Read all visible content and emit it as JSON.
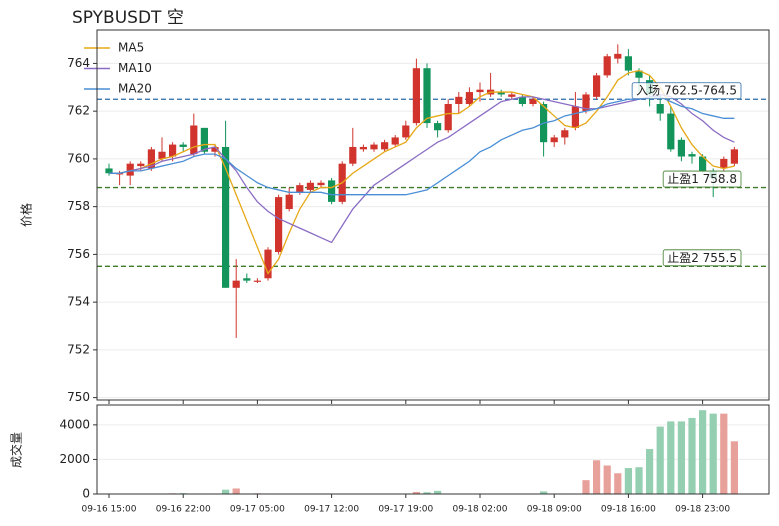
{
  "chart_data": [
    {
      "type": "candlestick",
      "title": "SPYBUSDT  空",
      "ylabel": "价格",
      "open": [
        759.6,
        759.4,
        759.3,
        759.7,
        759.6,
        760.0,
        760.1,
        760.6,
        760.2,
        761.3,
        760.3,
        760.5,
        754.6,
        755.0,
        754.9,
        755.0,
        756.1,
        757.9,
        758.6,
        758.7,
        758.9,
        759.1,
        758.2,
        759.8,
        760.4,
        760.4,
        760.4,
        760.6,
        760.9,
        761.5,
        763.8,
        761.5,
        761.2,
        762.3,
        762.3,
        762.8,
        762.7,
        762.8,
        762.6,
        762.6,
        762.3,
        762.3,
        760.7,
        760.9,
        761.3,
        762.0,
        762.6,
        763.5,
        764.2,
        764.3,
        763.7,
        763.3,
        762.3,
        761.9,
        760.8,
        760.2,
        760.1,
        759.5,
        759.6,
        759.8
      ],
      "high": [
        759.8,
        759.5,
        759.9,
        759.9,
        760.5,
        760.9,
        760.7,
        760.7,
        761.9,
        761.3,
        760.6,
        761.6,
        755.8,
        755.2,
        755.0,
        756.3,
        758.5,
        758.8,
        759.0,
        759.1,
        759.1,
        759.2,
        759.9,
        761.3,
        760.6,
        760.7,
        760.8,
        761.0,
        761.6,
        764.2,
        764.0,
        761.6,
        762.5,
        762.8,
        763.0,
        763.2,
        763.6,
        762.9,
        762.8,
        762.7,
        762.6,
        762.4,
        761.0,
        761.3,
        762.8,
        762.8,
        763.6,
        764.4,
        764.8,
        764.6,
        763.8,
        763.5,
        762.7,
        762.2,
        760.9,
        760.3,
        760.2,
        759.6,
        760.1,
        760.5
      ],
      "low": [
        759.3,
        758.9,
        758.9,
        759.5,
        759.5,
        759.9,
        759.9,
        760.3,
        760.1,
        760.2,
        760.1,
        754.6,
        752.5,
        754.8,
        754.8,
        754.9,
        756.0,
        757.8,
        758.5,
        758.6,
        758.8,
        758.1,
        758.1,
        759.7,
        760.3,
        760.3,
        760.3,
        760.5,
        760.8,
        761.4,
        761.3,
        760.9,
        761.1,
        761.9,
        762.2,
        762.4,
        762.6,
        762.6,
        762.5,
        762.2,
        762.2,
        760.1,
        760.5,
        760.6,
        761.2,
        761.9,
        762.5,
        763.4,
        764.0,
        763.5,
        762.7,
        762.2,
        761.6,
        760.3,
        759.9,
        759.8,
        759.4,
        758.4,
        759.5,
        759.7
      ],
      "close": [
        759.4,
        759.4,
        759.8,
        759.8,
        760.4,
        760.3,
        760.6,
        760.5,
        761.4,
        760.3,
        760.5,
        754.6,
        754.9,
        754.9,
        754.9,
        756.2,
        758.4,
        758.5,
        758.9,
        759.0,
        759.0,
        758.2,
        759.8,
        760.5,
        760.5,
        760.6,
        760.7,
        760.9,
        761.4,
        763.8,
        761.5,
        761.2,
        762.3,
        762.6,
        762.8,
        762.9,
        762.9,
        762.7,
        762.7,
        762.3,
        762.5,
        760.7,
        760.9,
        761.2,
        762.2,
        762.7,
        763.5,
        764.3,
        764.4,
        763.7,
        763.4,
        762.7,
        761.9,
        760.4,
        760.1,
        760.1,
        759.5,
        759.2,
        760.0,
        760.4
      ],
      "up_color": "#d0342c",
      "down_color": "#12945a",
      "series": [
        {
          "name": "MA5",
          "color": "#e6a817",
          "values": [
            759.4,
            759.4,
            759.5,
            759.6,
            759.8,
            760.0,
            760.1,
            760.3,
            760.5,
            760.6,
            760.6,
            759.6,
            758.5,
            757.4,
            756.3,
            755.2,
            755.8,
            756.9,
            757.9,
            758.6,
            758.8,
            758.8,
            759.0,
            759.4,
            759.7,
            760.0,
            760.3,
            760.5,
            760.7,
            761.3,
            761.7,
            761.8,
            761.9,
            761.9,
            762.2,
            762.6,
            762.8,
            762.8,
            762.8,
            762.7,
            762.6,
            762.2,
            761.8,
            761.4,
            761.3,
            761.5,
            762.0,
            762.6,
            763.3,
            763.6,
            763.7,
            763.5,
            763.0,
            762.2,
            761.3,
            760.6,
            760.1,
            759.7,
            759.6,
            759.7
          ]
        },
        {
          "name": "MA10",
          "color": "#8a6cc4",
          "values": [
            759.4,
            759.4,
            759.5,
            759.6,
            759.7,
            759.9,
            760.0,
            760.1,
            760.2,
            760.4,
            760.5,
            760.0,
            759.5,
            758.8,
            758.2,
            757.8,
            757.5,
            757.3,
            757.1,
            756.9,
            756.7,
            756.5,
            757.2,
            757.9,
            758.4,
            758.9,
            759.2,
            759.5,
            759.8,
            760.1,
            760.4,
            760.7,
            760.9,
            761.2,
            761.5,
            761.8,
            762.1,
            762.4,
            762.5,
            762.6,
            762.6,
            762.5,
            762.4,
            762.3,
            762.2,
            762.1,
            762.1,
            762.2,
            762.3,
            762.4,
            762.5,
            762.6,
            762.7,
            762.6,
            762.3,
            761.9,
            761.6,
            761.2,
            760.9,
            760.7
          ]
        },
        {
          "name": "MA20",
          "color": "#4a8fd6",
          "values": [
            759.4,
            759.4,
            759.5,
            759.5,
            759.6,
            759.7,
            759.8,
            759.9,
            760.1,
            760.2,
            760.2,
            760.0,
            759.6,
            759.3,
            759.0,
            758.8,
            758.7,
            758.6,
            758.6,
            758.6,
            758.6,
            758.5,
            758.5,
            758.5,
            758.5,
            758.5,
            758.5,
            758.5,
            758.5,
            758.6,
            758.7,
            759.0,
            759.3,
            759.6,
            759.9,
            760.3,
            760.5,
            760.8,
            761.0,
            761.2,
            761.3,
            761.5,
            761.6,
            761.8,
            761.9,
            762.0,
            762.1,
            762.3,
            762.4,
            762.5,
            762.5,
            762.6,
            762.6,
            762.4,
            762.2,
            762.1,
            761.9,
            761.8,
            761.7,
            761.7
          ]
        }
      ],
      "reference_lines": [
        {
          "label": "入场 762.5-764.5",
          "value": 762.5,
          "color": "#2a6aa8"
        },
        {
          "label": "止盈1 758.8",
          "value": 758.8,
          "color": "#3d7a2a"
        },
        {
          "label": "止盈2 755.5",
          "value": 755.5,
          "color": "#3d7a2a"
        }
      ],
      "ylim": [
        749.9,
        765.4
      ],
      "yticks": [
        750,
        752,
        754,
        756,
        758,
        760,
        762,
        764
      ],
      "grid": true,
      "legend": "upper left"
    },
    {
      "type": "bar",
      "ylabel": "成交量",
      "categories": [
        "09-16 15:00",
        null,
        null,
        null,
        null,
        null,
        null,
        "09-16 22:00",
        null,
        null,
        null,
        null,
        null,
        null,
        "09-17 05:00",
        null,
        null,
        null,
        null,
        null,
        null,
        "09-17 12:00",
        null,
        null,
        null,
        null,
        null,
        null,
        "09-17 19:00",
        null,
        null,
        null,
        null,
        null,
        null,
        "09-18 02:00",
        null,
        null,
        null,
        null,
        null,
        null,
        "09-18 09:00",
        null,
        null,
        null,
        null,
        null,
        null,
        "09-18 16:00",
        null,
        null,
        null,
        null,
        null,
        null,
        "09-18 23:00",
        null,
        null,
        null
      ],
      "values": [
        20,
        15,
        20,
        10,
        15,
        20,
        40,
        50,
        20,
        15,
        30,
        250,
        320,
        20,
        40,
        30,
        20,
        15,
        20,
        10,
        15,
        20,
        25,
        15,
        10,
        15,
        20,
        25,
        30,
        120,
        100,
        180,
        20,
        15,
        20,
        15,
        10,
        20,
        15,
        10,
        15,
        150,
        20,
        15,
        30,
        800,
        1950,
        1650,
        1200,
        1500,
        1550,
        2600,
        3900,
        4200,
        4200,
        4400,
        4850,
        4650,
        4650,
        3050
      ],
      "up_color": "#e8a09a",
      "down_color": "#93cfb0",
      "ylim": [
        0,
        5150
      ],
      "yticks": [
        0,
        2000,
        4000
      ],
      "grid": true
    }
  ]
}
